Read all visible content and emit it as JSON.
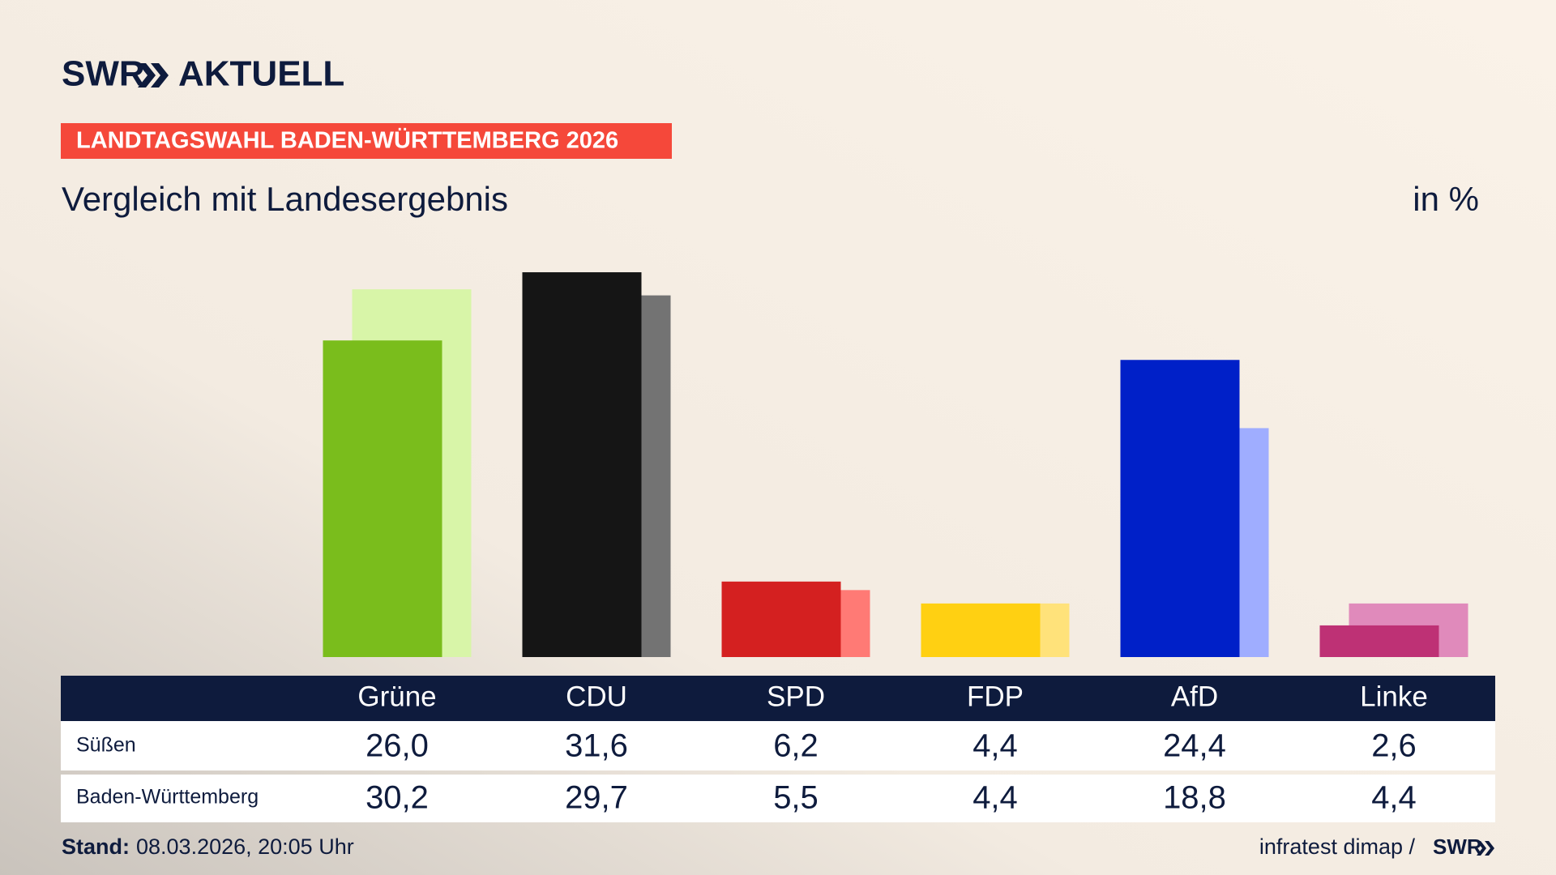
{
  "header": {
    "logo": "SWR",
    "product": "AKTUELL",
    "kicker": "LANDTAGSWAHL BADEN-WÜRTTEMBERG 2026"
  },
  "chart_data": {
    "type": "bar",
    "title": "Vergleich mit Landesergebnis",
    "unit_label": "in %",
    "categories": [
      "Grüne",
      "CDU",
      "SPD",
      "FDP",
      "AfD",
      "Linke"
    ],
    "series": [
      {
        "name": "Süßen",
        "colors": [
          "#7abd1c",
          "#151515",
          "#d42020",
          "#ffd012",
          "#0020c8",
          "#be3175"
        ],
        "values": [
          26.0,
          31.6,
          6.2,
          4.4,
          24.4,
          2.6
        ],
        "value_labels": [
          "26,0",
          "31,6",
          "6,2",
          "4,4",
          "24,4",
          "2,6"
        ]
      },
      {
        "name": "Baden-Württemberg",
        "colors": [
          "#d8f5a8",
          "#737373",
          "#ff7a75",
          "#ffe27a",
          "#9fadff",
          "#e08abb"
        ],
        "values": [
          30.2,
          29.7,
          5.5,
          4.4,
          18.8,
          4.4
        ],
        "value_labels": [
          "30,2",
          "29,7",
          "5,5",
          "4,4",
          "18,8",
          "4,4"
        ]
      }
    ],
    "ylim": [
      0,
      33
    ]
  },
  "footer": {
    "stand_label": "Stand:",
    "stand": "08.03.2026, 20:05 Uhr",
    "source": "infratest dimap /",
    "logo": "SWR"
  }
}
